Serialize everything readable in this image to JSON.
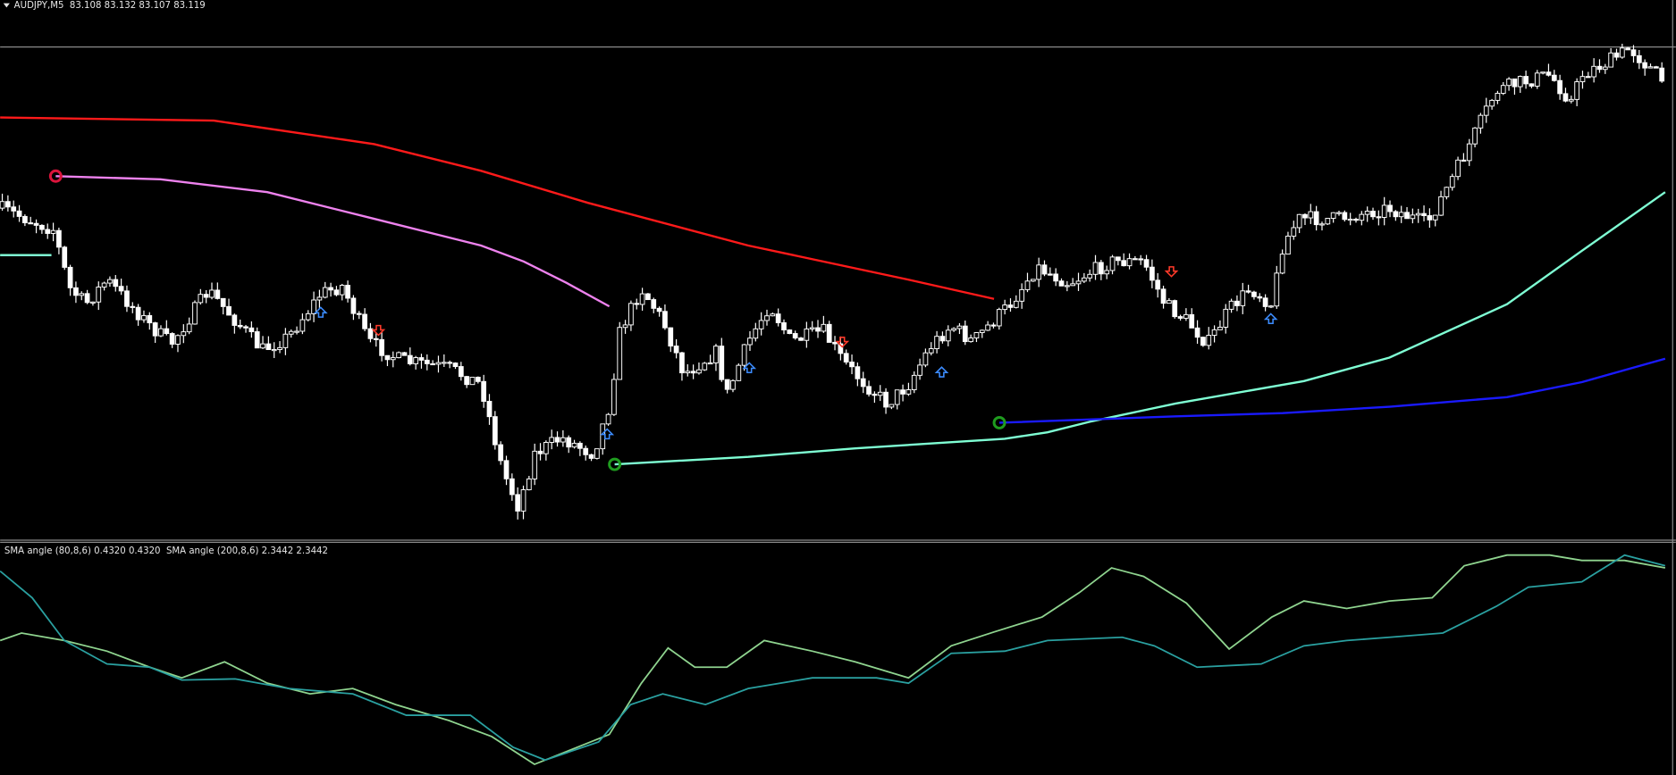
{
  "header": {
    "symbol_info": "AUDJPY,M5  83.108 83.132 83.107 83.119"
  },
  "indicator": {
    "label": "SMA angle (80,8,6) 0.4320 0.4320  SMA angle (200,8,6) 2.3442 2.3442"
  }
}
